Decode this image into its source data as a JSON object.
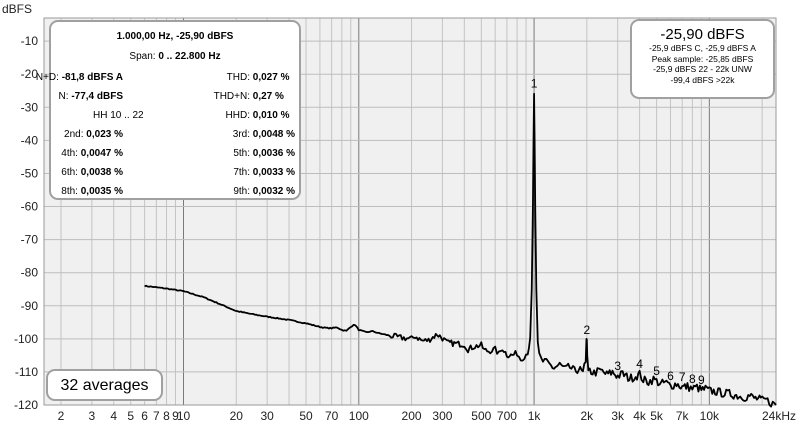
{
  "axis": {
    "y_unit": "dBFS",
    "x_unit": "kHz",
    "y_ticks": [
      {
        "value": -10,
        "label": "-10"
      },
      {
        "value": -20,
        "label": "-20"
      },
      {
        "value": -30,
        "label": "-30"
      },
      {
        "value": -40,
        "label": "-40"
      },
      {
        "value": -50,
        "label": "-50"
      },
      {
        "value": -60,
        "label": "-60"
      },
      {
        "value": -70,
        "label": "-70"
      },
      {
        "value": -80,
        "label": "-80"
      },
      {
        "value": -90,
        "label": "-90"
      },
      {
        "value": -100,
        "label": "-100"
      },
      {
        "value": -110,
        "label": "-110"
      },
      {
        "value": -120,
        "label": "-120"
      }
    ],
    "x_ticks": [
      {
        "value": 2,
        "label": "2"
      },
      {
        "value": 3,
        "label": "3"
      },
      {
        "value": 4,
        "label": "4"
      },
      {
        "value": 5,
        "label": "5"
      },
      {
        "value": 6,
        "label": "6"
      },
      {
        "value": 7,
        "label": "7"
      },
      {
        "value": 8,
        "label": "8"
      },
      {
        "value": 9,
        "label": "9"
      },
      {
        "value": 10,
        "label": "10"
      },
      {
        "value": 20,
        "label": "20"
      },
      {
        "value": 30,
        "label": "30"
      },
      {
        "value": 50,
        "label": "50"
      },
      {
        "value": 70,
        "label": "70"
      },
      {
        "value": 100,
        "label": "100"
      },
      {
        "value": 200,
        "label": "200"
      },
      {
        "value": 300,
        "label": "300"
      },
      {
        "value": 500,
        "label": "500"
      },
      {
        "value": 700,
        "label": "700"
      },
      {
        "value": 1000,
        "label": "1k"
      },
      {
        "value": 2000,
        "label": "2k"
      },
      {
        "value": 3000,
        "label": "3k"
      },
      {
        "value": 4000,
        "label": "4k"
      },
      {
        "value": 5000,
        "label": "5k"
      },
      {
        "value": 7000,
        "label": "7k"
      },
      {
        "value": 10000,
        "label": "10k"
      },
      {
        "value": 24000,
        "label": "24kHz"
      }
    ]
  },
  "stats_panel": {
    "header_line1": "1.000,00 Hz, -25,90 dBFS",
    "header_line2_label": "Span:",
    "header_line2_value": "0 .. 22.800 Hz",
    "rows": [
      {
        "l_label": "N+D:",
        "l_value": "-81,8 dBFS A",
        "r_label": "THD:",
        "r_value": "0,027 %"
      },
      {
        "l_label": "N:",
        "l_value": "-77,4 dBFS",
        "r_label": "THD+N:",
        "r_value": "0,27 %"
      },
      {
        "l_label": "HH 10 .. 22",
        "l_value": "",
        "r_label": "HHD:",
        "r_value": "0,010 %"
      },
      {
        "l_label": "2nd:",
        "l_value": "0,023 %",
        "r_label": "3rd:",
        "r_value": "0,0048 %"
      },
      {
        "l_label": "4th:",
        "l_value": "0,0047 %",
        "r_label": "5th:",
        "r_value": "0,0036 %"
      },
      {
        "l_label": "6th:",
        "l_value": "0,0038 %",
        "r_label": "7th:",
        "r_value": "0,0033 %"
      },
      {
        "l_label": "8th:",
        "l_value": "0,0035 %",
        "r_label": "9th:",
        "r_value": "0,0032 %"
      }
    ]
  },
  "level_panel": {
    "main_level": "-25,90 dBFS",
    "lines": [
      "-25,9 dBFS C, -25,9 dBFS A",
      "Peak sample: -25,85 dBFS",
      "-25,9 dBFS 22 - 22k UNW",
      "-99,4 dBFS >22k"
    ]
  },
  "averages_label": "32 averages",
  "chart_data": {
    "type": "line",
    "x_scale": "log",
    "xlim": [
      1.6,
      24000
    ],
    "ylim": [
      -120,
      -3
    ],
    "grid": true,
    "xlabel": "kHz",
    "ylabel": "dBFS",
    "series": [
      {
        "color": "#000000",
        "points": [
          [
            6,
            -84
          ],
          [
            8,
            -84.8
          ],
          [
            10,
            -85.6
          ],
          [
            13,
            -87.4
          ],
          [
            16,
            -89.4
          ],
          [
            20,
            -91.6
          ],
          [
            25,
            -92.6
          ],
          [
            30,
            -93.3
          ],
          [
            40,
            -94.3
          ],
          [
            50,
            -95.3
          ],
          [
            60,
            -96.4
          ],
          [
            65,
            -96.7
          ],
          [
            70,
            -96.8
          ],
          [
            75,
            -96.5
          ],
          [
            80,
            -97.3
          ],
          [
            85,
            -97.6
          ],
          [
            90,
            -96.3
          ],
          [
            95,
            -95.7
          ],
          [
            100,
            -97.3
          ],
          [
            110,
            -98.0
          ],
          [
            120,
            -97.7
          ],
          [
            130,
            -98.3
          ],
          [
            150,
            -99.0
          ],
          [
            170,
            -99.6
          ],
          [
            200,
            -100.0
          ],
          [
            210,
            -99.2
          ],
          [
            230,
            -100.6
          ],
          [
            250,
            -100.4
          ],
          [
            280,
            -98.6
          ],
          [
            300,
            -99.8
          ],
          [
            320,
            -101.2
          ],
          [
            350,
            -101.4
          ],
          [
            400,
            -101.7
          ],
          [
            420,
            -103.2
          ],
          [
            450,
            -102.4
          ],
          [
            500,
            -101.9
          ],
          [
            520,
            -103.4
          ],
          [
            550,
            -103.7
          ],
          [
            600,
            -103.2
          ],
          [
            630,
            -104.6
          ],
          [
            660,
            -102.8
          ],
          [
            700,
            -104.8
          ],
          [
            750,
            -105.0
          ],
          [
            800,
            -104.3
          ],
          [
            840,
            -106.2
          ],
          [
            880,
            -105.2
          ],
          [
            920,
            -104.0
          ],
          [
            950,
            -100.5
          ],
          [
            970,
            -85.0
          ],
          [
            985,
            -60.0
          ],
          [
            993,
            -40.0
          ],
          [
            1000,
            -25.9
          ],
          [
            1007,
            -40.0
          ],
          [
            1015,
            -60.0
          ],
          [
            1030,
            -85.0
          ],
          [
            1050,
            -101.0
          ],
          [
            1070,
            -105.0
          ],
          [
            1100,
            -106.5
          ],
          [
            1200,
            -107.5
          ],
          [
            1300,
            -108.8
          ],
          [
            1400,
            -107.8
          ],
          [
            1500,
            -109.2
          ],
          [
            1600,
            -108.6
          ],
          [
            1700,
            -109.8
          ],
          [
            1800,
            -109.0
          ],
          [
            1900,
            -110.4
          ],
          [
            1970,
            -107.0
          ],
          [
            1990,
            -100.0
          ],
          [
            2000,
            -100.3
          ],
          [
            2010,
            -105.0
          ],
          [
            2040,
            -109.5
          ],
          [
            2200,
            -110.3
          ],
          [
            2400,
            -109.6
          ],
          [
            2600,
            -110.8
          ],
          [
            2800,
            -110.1
          ],
          [
            3000,
            -111.3
          ],
          [
            3200,
            -110.6
          ],
          [
            3500,
            -112.0
          ],
          [
            3800,
            -111.3
          ],
          [
            4000,
            -110.7
          ],
          [
            4200,
            -112.4
          ],
          [
            4500,
            -113.0
          ],
          [
            4800,
            -112.2
          ],
          [
            5000,
            -112.8
          ],
          [
            5300,
            -113.7
          ],
          [
            5600,
            -113.1
          ],
          [
            6000,
            -114.2
          ],
          [
            6500,
            -113.6
          ],
          [
            7000,
            -114.6
          ],
          [
            7500,
            -114.4
          ],
          [
            8000,
            -115.1
          ],
          [
            8500,
            -114.6
          ],
          [
            9000,
            -115.5
          ],
          [
            9500,
            -115.1
          ],
          [
            10000,
            -115.7
          ],
          [
            11000,
            -116.0
          ],
          [
            12000,
            -116.4
          ],
          [
            13000,
            -116.6
          ],
          [
            14000,
            -117.0
          ],
          [
            15000,
            -117.4
          ],
          [
            16000,
            -117.6
          ],
          [
            17000,
            -117.2
          ],
          [
            18000,
            -117.9
          ],
          [
            19000,
            -118.2
          ],
          [
            20000,
            -118.6
          ],
          [
            21000,
            -118.4
          ],
          [
            22000,
            -119.1
          ],
          [
            23000,
            -119.6
          ],
          [
            24000,
            -120.0
          ]
        ]
      }
    ],
    "annotations": [
      {
        "text": "1",
        "x": 1000,
        "y": -25.9
      },
      {
        "text": "2",
        "x": 2000,
        "y": -100.3
      },
      {
        "text": "3",
        "x": 3000,
        "y": -111.3
      },
      {
        "text": "4",
        "x": 4000,
        "y": -110.7
      },
      {
        "text": "5",
        "x": 5000,
        "y": -112.8
      },
      {
        "text": "6",
        "x": 6000,
        "y": -114.2
      },
      {
        "text": "7",
        "x": 7000,
        "y": -114.6
      },
      {
        "text": "8",
        "x": 8000,
        "y": -115.1
      },
      {
        "text": "9",
        "x": 9000,
        "y": -115.5
      }
    ]
  }
}
